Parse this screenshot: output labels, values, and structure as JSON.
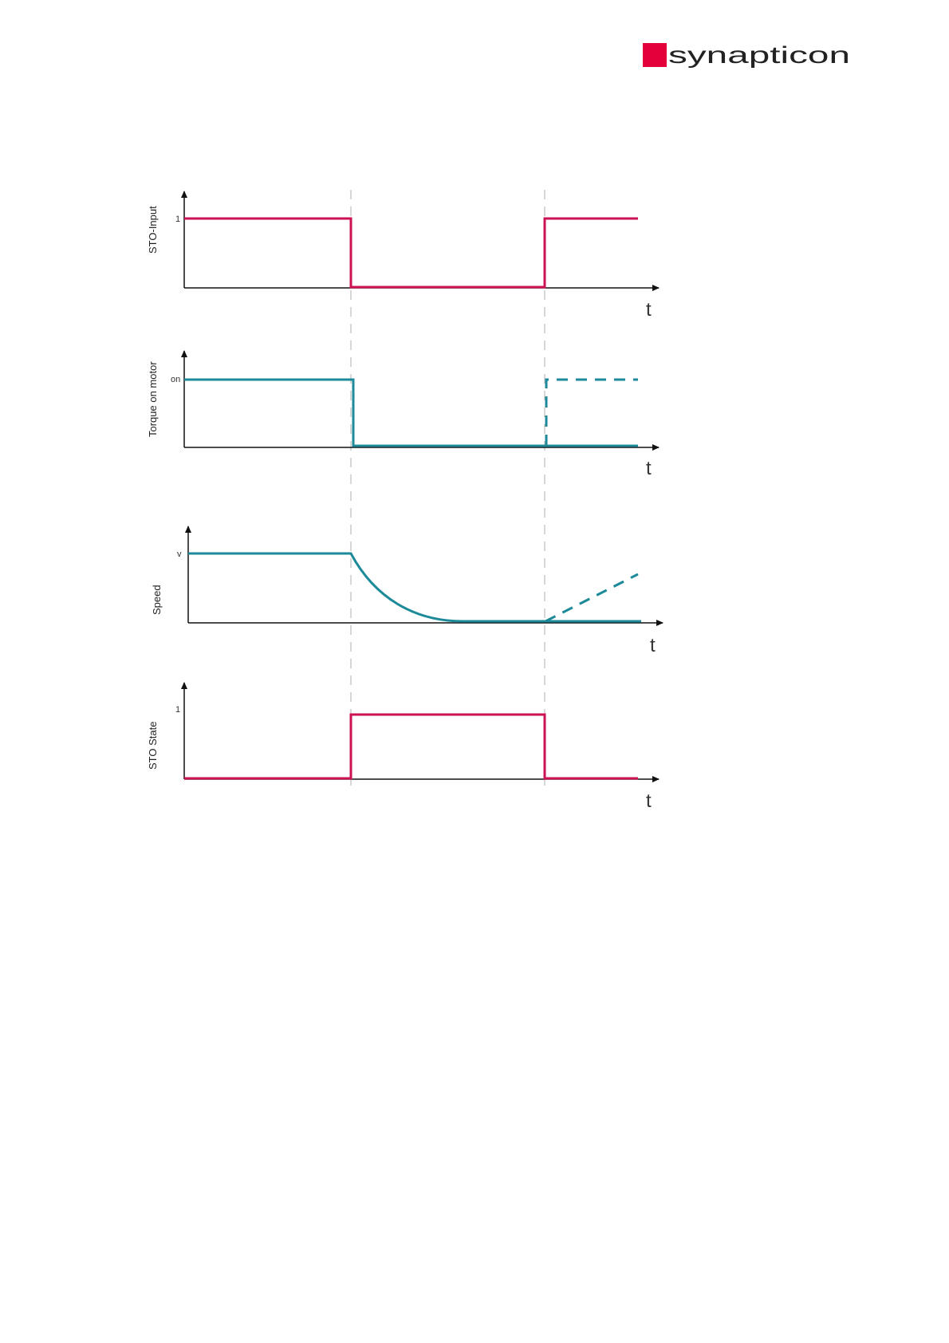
{
  "brand": {
    "name": "synapticon",
    "accent_color": "#e4003a"
  },
  "colors": {
    "magenta": "#cc1155",
    "teal": "#1d8a99",
    "axis": "#111111",
    "divider": "#bbbbbb"
  },
  "panels": [
    {
      "ylabel": "STO-Input",
      "level_label": "1",
      "xlabel": "t",
      "color": "magenta",
      "signal": "high-low-high"
    },
    {
      "ylabel": "Torque on motor",
      "level_label": "on",
      "xlabel": "t",
      "color": "teal",
      "signal": "on-off, dashed return to on after STO release"
    },
    {
      "ylabel": "Speed",
      "level_label": "v",
      "xlabel": "t",
      "color": "teal",
      "signal": "constant, exponential decay to 0, dashed ramp up after STO release"
    },
    {
      "ylabel": "STO State",
      "level_label": "1",
      "xlabel": "t",
      "color": "magenta",
      "signal": "low-high-low"
    }
  ]
}
